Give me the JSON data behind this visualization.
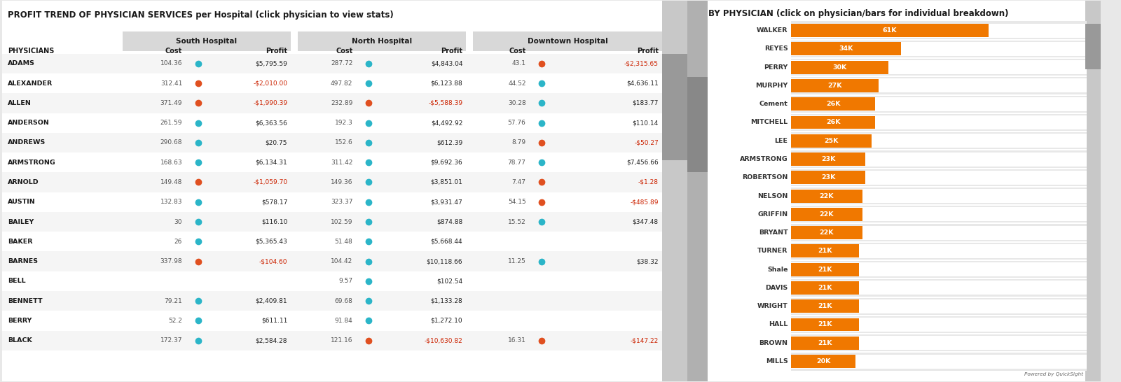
{
  "title_left": "PROFIT TREND OF PHYSICIAN SERVICES per Hospital (click physician to view stats)",
  "title_right": "BY PHYSICIAN (click on physician/bars for individual breakdown)",
  "bg_color": "#e8e8e8",
  "panel_bg": "#ffffff",
  "header_bg": "#d8d8d8",
  "teal_color": "#2bb5c8",
  "orange_color": "#e05020",
  "bar_color": "#f07800",
  "scrollbar_bg": "#bbbbbb",
  "scrollbar_handle": "#888888",
  "physicians": [
    "ADAMS",
    "ALEXANDER",
    "ALLEN",
    "ANDERSON",
    "ANDREWS",
    "ARMSTRONG",
    "ARNOLD",
    "AUSTIN",
    "BAILEY",
    "BAKER",
    "BARNES",
    "BELL",
    "BENNETT",
    "BERRY",
    "BLACK"
  ],
  "south_cost": [
    "104.36",
    "312.41",
    "371.49",
    "261.59",
    "290.68",
    "168.63",
    "149.48",
    "132.83",
    "30",
    "26",
    "337.98",
    "",
    "79.21",
    "52.2",
    "172.37"
  ],
  "south_profit_raw": [
    5795.59,
    -2010.0,
    -1990.39,
    6363.56,
    20.75,
    6134.31,
    -1059.7,
    578.17,
    116.1,
    5365.43,
    -104.6,
    null,
    2409.81,
    611.11,
    2584.28
  ],
  "south_dot": [
    "teal",
    "orange",
    "orange",
    "teal",
    "teal",
    "teal",
    "orange",
    "teal",
    "teal",
    "teal",
    "orange",
    null,
    "teal",
    "teal",
    "teal"
  ],
  "north_cost": [
    "287.72",
    "497.82",
    "232.89",
    "192.3",
    "152.6",
    "311.42",
    "149.36",
    "323.37",
    "102.59",
    "51.48",
    "104.42",
    "9.57",
    "69.68",
    "91.84",
    "121.16"
  ],
  "north_profit_raw": [
    4843.04,
    6123.88,
    -5588.39,
    4492.92,
    612.39,
    9692.36,
    3851.01,
    3931.47,
    874.88,
    5668.44,
    10118.66,
    102.54,
    1133.28,
    1272.1,
    -10630.82
  ],
  "north_dot": [
    "teal",
    "teal",
    "orange",
    "teal",
    "teal",
    "teal",
    "teal",
    "teal",
    "teal",
    "teal",
    "teal",
    "teal",
    "teal",
    "teal",
    "orange"
  ],
  "downtown_cost": [
    "43.1",
    "44.52",
    "30.28",
    "57.76",
    "8.79",
    "78.77",
    "7.47",
    "54.15",
    "15.52",
    "",
    "11.25",
    "",
    "",
    "",
    "16.31"
  ],
  "downtown_profit_raw": [
    -2315.65,
    4636.11,
    183.77,
    110.14,
    -50.27,
    7456.66,
    -1.28,
    -485.89,
    347.48,
    null,
    38.32,
    null,
    null,
    null,
    -147.22
  ],
  "downtown_dot": [
    "orange",
    "teal",
    "teal",
    "teal",
    "orange",
    "teal",
    "orange",
    "orange",
    "teal",
    null,
    "teal",
    null,
    null,
    null,
    "orange"
  ],
  "bar_physicians": [
    "WALKER",
    "REYES",
    "PERRY",
    "MURPHY",
    "Cement",
    "MITCHELL",
    "LEE",
    "ARMSTRONG",
    "ROBERTSON",
    "NELSON",
    "GRIFFIN",
    "BRYANT",
    "TURNER",
    "Shale",
    "DAVIS",
    "WRIGHT",
    "HALL",
    "BROWN",
    "MILLS"
  ],
  "bar_values": [
    61,
    34,
    30,
    27,
    26,
    26,
    25,
    23,
    23,
    22,
    22,
    22,
    21,
    21,
    21,
    21,
    21,
    21,
    20
  ],
  "bar_labels": [
    "61K",
    "34K",
    "30K",
    "27K",
    "26K",
    "26K",
    "25K",
    "23K",
    "23K",
    "22K",
    "22K",
    "22K",
    "21K",
    "21K",
    "21K",
    "21K",
    "21K",
    "21K",
    "20K"
  ],
  "row_colors": [
    "#f5f5f5",
    "#ffffff"
  ],
  "text_dark": "#1a1a1a",
  "text_gray": "#555555",
  "neg_color": "#cc2200",
  "pos_color": "#222222"
}
